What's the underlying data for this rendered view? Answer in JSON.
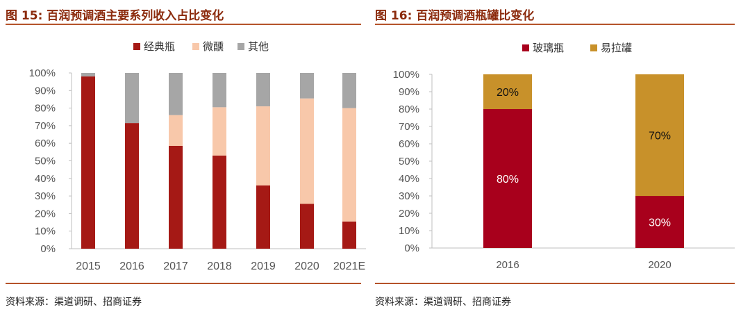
{
  "figures": [
    {
      "title": "图 15:  百润预调酒主要系列收入占比变化",
      "source": "资料来源：渠道调研、招商证券"
    },
    {
      "title": "图 16:  百润预调酒瓶罐比变化",
      "source": "资料来源：渠道调研、招商证券"
    }
  ],
  "chart_data": [
    {
      "type": "bar",
      "stacked": true,
      "title": "图 15:  百润预调酒主要系列收入占比变化",
      "categories": [
        "2015",
        "2016",
        "2017",
        "2018",
        "2019",
        "2020",
        "2021E"
      ],
      "series": [
        {
          "name": "经典瓶",
          "color": "#a51915",
          "values": [
            98,
            71.5,
            58.5,
            53,
            36,
            25.5,
            15.5
          ]
        },
        {
          "name": "微醺",
          "color": "#f8c8aa",
          "values": [
            0,
            0,
            17.5,
            27.5,
            45,
            60,
            64.5
          ]
        },
        {
          "name": "其他",
          "color": "#a6a6a6",
          "values": [
            2,
            28.5,
            24,
            19.5,
            19,
            14.5,
            20
          ]
        }
      ],
      "y_ticks": [
        "0%",
        "10%",
        "20%",
        "30%",
        "40%",
        "50%",
        "60%",
        "70%",
        "80%",
        "90%",
        "100%"
      ],
      "ylim": [
        0,
        100
      ],
      "legend": "top"
    },
    {
      "type": "bar",
      "stacked": true,
      "title": "图 16:  百润预调酒瓶罐比变化",
      "categories": [
        "2016",
        "2020"
      ],
      "series": [
        {
          "name": "玻璃瓶",
          "color": "#a8001c",
          "label_color": "#ffffff",
          "values": [
            80,
            30
          ],
          "labels": [
            "80%",
            "30%"
          ]
        },
        {
          "name": "易拉罐",
          "color": "#c8912a",
          "label_color": "#111111",
          "values": [
            20,
            70
          ],
          "labels": [
            "20%",
            "70%"
          ]
        }
      ],
      "y_ticks": [
        "0%",
        "10%",
        "20%",
        "30%",
        "40%",
        "50%",
        "60%",
        "70%",
        "80%",
        "90%",
        "100%"
      ],
      "ylim": [
        0,
        100
      ],
      "legend": "top"
    }
  ]
}
